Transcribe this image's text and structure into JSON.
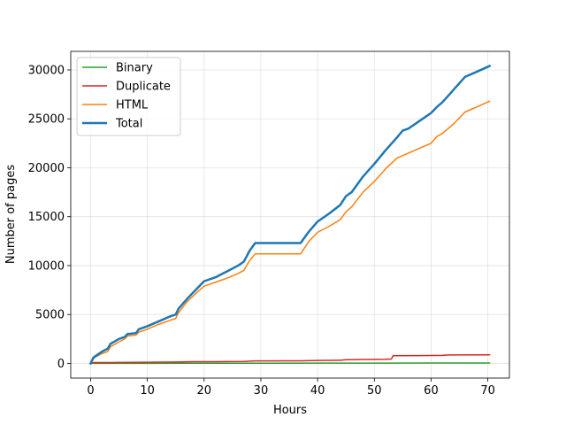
{
  "chart_data": {
    "type": "line",
    "title": "",
    "xlabel": "Hours",
    "ylabel": "Number of pages",
    "xlim": [
      -3.5,
      73.8
    ],
    "ylim": [
      -1500,
      31900
    ],
    "xticks": [
      0,
      10,
      20,
      30,
      40,
      50,
      60,
      70
    ],
    "yticks": [
      0,
      5000,
      10000,
      15000,
      20000,
      25000,
      30000
    ],
    "grid": true,
    "legend_position": "top-left",
    "series": [
      {
        "name": "Binary",
        "color": "#2ca02c",
        "width": 1.5,
        "points": [
          [
            0,
            0
          ],
          [
            10,
            10
          ],
          [
            20,
            15
          ],
          [
            30,
            20
          ],
          [
            40,
            25
          ],
          [
            50,
            30
          ],
          [
            60,
            35
          ],
          [
            70.3,
            40
          ]
        ]
      },
      {
        "name": "Duplicate",
        "color": "#d62728",
        "width": 1.5,
        "points": [
          [
            0,
            0
          ],
          [
            0.5,
            80
          ],
          [
            5,
            90
          ],
          [
            10,
            120
          ],
          [
            15,
            140
          ],
          [
            18,
            170
          ],
          [
            22,
            180
          ],
          [
            27,
            200
          ],
          [
            29,
            250
          ],
          [
            37,
            270
          ],
          [
            40,
            300
          ],
          [
            44,
            320
          ],
          [
            45,
            380
          ],
          [
            48,
            400
          ],
          [
            52,
            420
          ],
          [
            53,
            450
          ],
          [
            53.3,
            780
          ],
          [
            58,
            800
          ],
          [
            62,
            820
          ],
          [
            63,
            870
          ],
          [
            70.3,
            880
          ]
        ]
      },
      {
        "name": "HTML",
        "color": "#ff7f0e",
        "width": 1.5,
        "points": [
          [
            0,
            0
          ],
          [
            0.5,
            500
          ],
          [
            1,
            700
          ],
          [
            2,
            1000
          ],
          [
            3,
            1200
          ],
          [
            3.5,
            1700
          ],
          [
            5,
            2200
          ],
          [
            6,
            2500
          ],
          [
            6.5,
            2800
          ],
          [
            8,
            2900
          ],
          [
            8.5,
            3200
          ],
          [
            10,
            3500
          ],
          [
            12,
            4000
          ],
          [
            14,
            4400
          ],
          [
            15,
            4600
          ],
          [
            15.5,
            5200
          ],
          [
            17,
            6300
          ],
          [
            19,
            7400
          ],
          [
            20,
            7900
          ],
          [
            22,
            8300
          ],
          [
            24,
            8700
          ],
          [
            26,
            9200
          ],
          [
            27,
            9500
          ],
          [
            28,
            10500
          ],
          [
            29,
            11200
          ],
          [
            37,
            11200
          ],
          [
            38.5,
            12500
          ],
          [
            40,
            13400
          ],
          [
            42,
            14000
          ],
          [
            44,
            14700
          ],
          [
            45,
            15500
          ],
          [
            46,
            16000
          ],
          [
            48,
            17500
          ],
          [
            50,
            18600
          ],
          [
            52,
            19900
          ],
          [
            54,
            21000
          ],
          [
            56,
            21500
          ],
          [
            58,
            22000
          ],
          [
            60,
            22500
          ],
          [
            61,
            23200
          ],
          [
            62,
            23500
          ],
          [
            64,
            24500
          ],
          [
            66,
            25700
          ],
          [
            68,
            26200
          ],
          [
            70.3,
            26800
          ]
        ]
      },
      {
        "name": "Total",
        "color": "#1f77b4",
        "width": 2.5,
        "points": [
          [
            0,
            0
          ],
          [
            0.5,
            600
          ],
          [
            1,
            800
          ],
          [
            2,
            1200
          ],
          [
            3,
            1500
          ],
          [
            3.5,
            2000
          ],
          [
            5,
            2500
          ],
          [
            6,
            2700
          ],
          [
            6.5,
            3000
          ],
          [
            8,
            3100
          ],
          [
            8.5,
            3500
          ],
          [
            10,
            3800
          ],
          [
            12,
            4300
          ],
          [
            14,
            4800
          ],
          [
            15,
            5000
          ],
          [
            15.5,
            5600
          ],
          [
            17,
            6600
          ],
          [
            19,
            7800
          ],
          [
            20,
            8400
          ],
          [
            22,
            8800
          ],
          [
            24,
            9400
          ],
          [
            26,
            10000
          ],
          [
            27,
            10400
          ],
          [
            28,
            11500
          ],
          [
            29,
            12300
          ],
          [
            37,
            12300
          ],
          [
            38.5,
            13500
          ],
          [
            40,
            14500
          ],
          [
            42,
            15300
          ],
          [
            44,
            16200
          ],
          [
            45,
            17100
          ],
          [
            46,
            17500
          ],
          [
            48,
            19100
          ],
          [
            50,
            20400
          ],
          [
            52,
            21800
          ],
          [
            54,
            23100
          ],
          [
            55,
            23800
          ],
          [
            56,
            24000
          ],
          [
            58,
            24800
          ],
          [
            60,
            25600
          ],
          [
            61,
            26200
          ],
          [
            62,
            26700
          ],
          [
            64,
            28000
          ],
          [
            66,
            29300
          ],
          [
            68,
            29800
          ],
          [
            70.3,
            30400
          ]
        ]
      }
    ]
  }
}
